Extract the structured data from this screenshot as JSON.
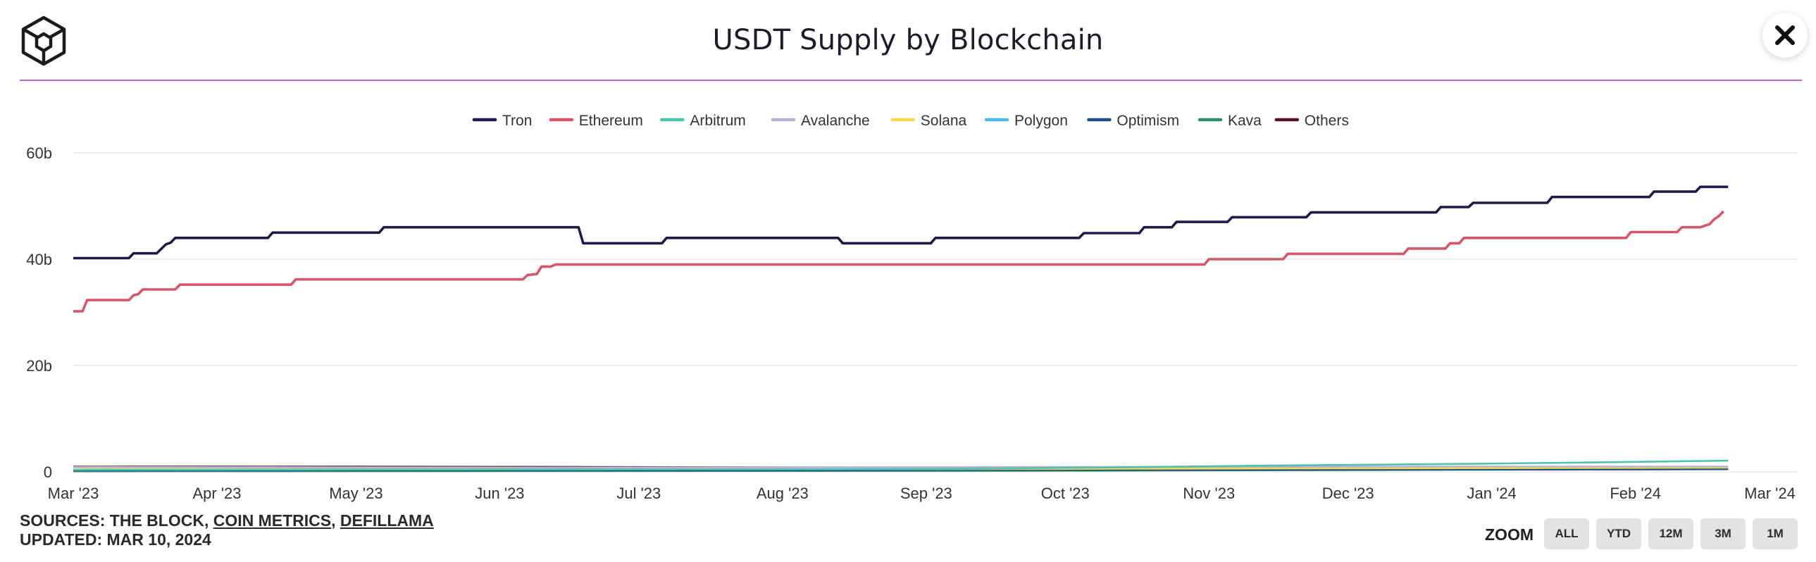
{
  "header": {
    "title": "USDT Supply by Blockchain",
    "logo_icon": "the-block-cube-logo",
    "close_icon": "close-icon",
    "accent_color": "#b86ad8"
  },
  "chart_data": {
    "type": "line",
    "title": "USDT Supply by Blockchain",
    "xlabel": "",
    "ylabel": "",
    "ylim": [
      0,
      60
    ],
    "y_ticks": [
      {
        "value": 0,
        "label": "0"
      },
      {
        "value": 20,
        "label": "20b"
      },
      {
        "value": 40,
        "label": "40b"
      },
      {
        "value": 60,
        "label": "60b"
      }
    ],
    "x_range": [
      0,
      372
    ],
    "x_ticks": [
      {
        "x": 0,
        "label": "Mar '23"
      },
      {
        "x": 31,
        "label": "Apr '23"
      },
      {
        "x": 61,
        "label": "May '23"
      },
      {
        "x": 92,
        "label": "Jun '23"
      },
      {
        "x": 122,
        "label": "Jul '23"
      },
      {
        "x": 153,
        "label": "Aug '23"
      },
      {
        "x": 184,
        "label": "Sep '23"
      },
      {
        "x": 214,
        "label": "Oct '23"
      },
      {
        "x": 245,
        "label": "Nov '23"
      },
      {
        "x": 275,
        "label": "Dec '23"
      },
      {
        "x": 306,
        "label": "Jan '24"
      },
      {
        "x": 337,
        "label": "Feb '24"
      },
      {
        "x": 366,
        "label": "Mar '24"
      }
    ],
    "grid": true,
    "legend_position": "top-center",
    "series": [
      {
        "name": "Tron",
        "color": "#1e1b4b",
        "points": [
          [
            0,
            40.2
          ],
          [
            12,
            40.2
          ],
          [
            13,
            41.1
          ],
          [
            18,
            41.1
          ],
          [
            20,
            42.8
          ],
          [
            21,
            43.1
          ],
          [
            22,
            44.0
          ],
          [
            42,
            44.0
          ],
          [
            43,
            45.0
          ],
          [
            66,
            45.0
          ],
          [
            67,
            46.0
          ],
          [
            109,
            46.0
          ],
          [
            110,
            43.0
          ],
          [
            127,
            43.0
          ],
          [
            128,
            44.0
          ],
          [
            165,
            44.0
          ],
          [
            166,
            43.0
          ],
          [
            185,
            43.0
          ],
          [
            186,
            44.0
          ],
          [
            217,
            44.0
          ],
          [
            218,
            44.9
          ],
          [
            230,
            44.9
          ],
          [
            231,
            46.0
          ],
          [
            237,
            46.0
          ],
          [
            238,
            47.0
          ],
          [
            249,
            47.0
          ],
          [
            250,
            47.9
          ],
          [
            266,
            47.9
          ],
          [
            267,
            48.8
          ],
          [
            294,
            48.8
          ],
          [
            295,
            49.8
          ],
          [
            301,
            49.8
          ],
          [
            302,
            50.6
          ],
          [
            318,
            50.6
          ],
          [
            319,
            51.7
          ],
          [
            340,
            51.7
          ],
          [
            341,
            52.7
          ],
          [
            350,
            52.7
          ],
          [
            351,
            53.6
          ],
          [
            357,
            53.6
          ]
        ]
      },
      {
        "name": "Ethereum",
        "color": "#d6566a",
        "points": [
          [
            0,
            30.2
          ],
          [
            2,
            30.2
          ],
          [
            3,
            32.3
          ],
          [
            12,
            32.3
          ],
          [
            13,
            33.2
          ],
          [
            14,
            33.4
          ],
          [
            15,
            34.3
          ],
          [
            22,
            34.3
          ],
          [
            23,
            35.2
          ],
          [
            47,
            35.2
          ],
          [
            48,
            36.2
          ],
          [
            97,
            36.2
          ],
          [
            98,
            37.0
          ],
          [
            100,
            37.2
          ],
          [
            101,
            38.6
          ],
          [
            103,
            38.6
          ],
          [
            104,
            39.0
          ],
          [
            244,
            39.0
          ],
          [
            245,
            40.0
          ],
          [
            261,
            40.0
          ],
          [
            262,
            41.0
          ],
          [
            287,
            41.0
          ],
          [
            288,
            42.0
          ],
          [
            296,
            42.0
          ],
          [
            297,
            43.0
          ],
          [
            299,
            43.0
          ],
          [
            300,
            44.0
          ],
          [
            335,
            44.0
          ],
          [
            336,
            45.1
          ],
          [
            346,
            45.1
          ],
          [
            347,
            46.0
          ],
          [
            351,
            46.0
          ],
          [
            353,
            46.6
          ],
          [
            354,
            47.5
          ],
          [
            355,
            48.1
          ],
          [
            356,
            49.0
          ]
        ]
      },
      {
        "name": "Arbitrum",
        "color": "#4fc2b0",
        "points": [
          [
            0,
            0.4
          ],
          [
            180,
            0.5
          ],
          [
            220,
            0.8
          ],
          [
            260,
            1.2
          ],
          [
            300,
            1.5
          ],
          [
            330,
            1.8
          ],
          [
            357,
            2.1
          ]
        ]
      },
      {
        "name": "Avalanche",
        "color": "#b8b3d0",
        "points": [
          [
            0,
            0.9
          ],
          [
            100,
            0.8
          ],
          [
            200,
            0.9
          ],
          [
            300,
            1.0
          ],
          [
            357,
            1.0
          ]
        ]
      },
      {
        "name": "Solana",
        "color": "#f7d94c",
        "points": [
          [
            0,
            0.8
          ],
          [
            100,
            0.7
          ],
          [
            180,
            0.5
          ],
          [
            230,
            0.6
          ],
          [
            300,
            0.7
          ],
          [
            357,
            0.8
          ]
        ]
      },
      {
        "name": "Polygon",
        "color": "#4cb8e8",
        "points": [
          [
            0,
            0.9
          ],
          [
            100,
            0.8
          ],
          [
            200,
            0.8
          ],
          [
            300,
            0.9
          ],
          [
            357,
            0.9
          ]
        ]
      },
      {
        "name": "Optimism",
        "color": "#1f4f8a",
        "points": [
          [
            0,
            0.3
          ],
          [
            150,
            0.3
          ],
          [
            250,
            0.4
          ],
          [
            357,
            0.5
          ]
        ]
      },
      {
        "name": "Kava",
        "color": "#2d8c72",
        "points": [
          [
            0,
            0.1
          ],
          [
            200,
            0.2
          ],
          [
            300,
            0.4
          ],
          [
            357,
            0.5
          ]
        ]
      },
      {
        "name": "Others",
        "color": "#5a0f24",
        "points": [
          [
            0,
            1.0
          ],
          [
            60,
            1.0
          ],
          [
            120,
            0.9
          ],
          [
            180,
            0.8
          ],
          [
            240,
            0.8
          ],
          [
            300,
            0.8
          ],
          [
            357,
            0.8
          ]
        ]
      }
    ]
  },
  "footer": {
    "sources_prefix": "SOURCES: THE BLOCK, ",
    "source_link_1": "COIN METRICS",
    "separator": ", ",
    "source_link_2": "DEFILLAMA",
    "updated": "UPDATED: MAR 10, 2024"
  },
  "zoom": {
    "label": "ZOOM",
    "buttons": [
      "ALL",
      "YTD",
      "12M",
      "3M",
      "1M"
    ]
  }
}
